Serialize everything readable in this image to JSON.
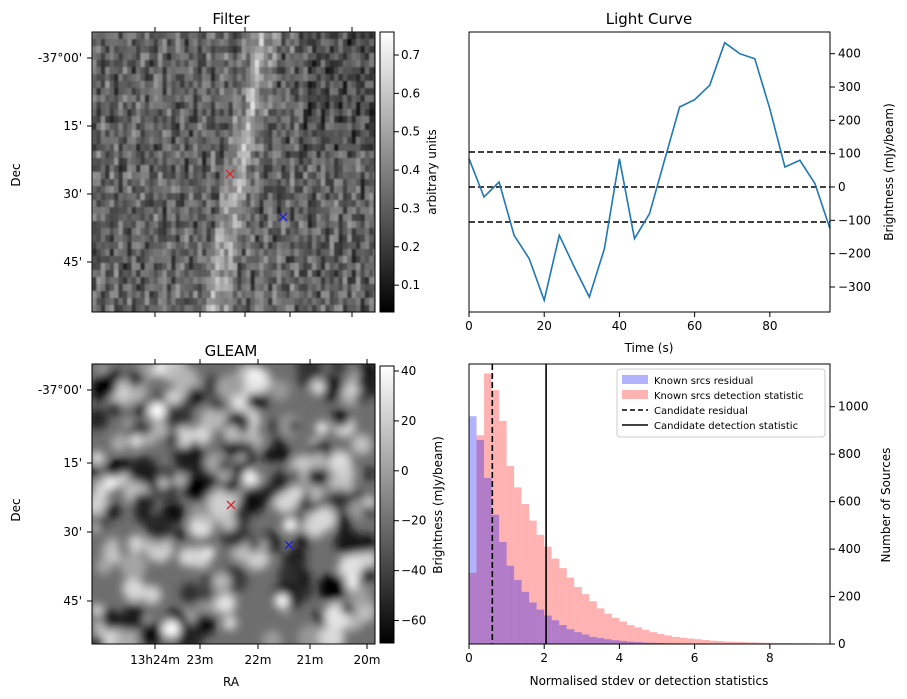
{
  "chart_data": [
    {
      "type": "heatmap",
      "title": "Filter",
      "ylabel": "Dec",
      "y_ticks": [
        "-37°00'",
        "15'",
        "30'",
        "45'"
      ],
      "colorbar": {
        "label": "arbitrary units",
        "ticks": [
          "0.1",
          "0.2",
          "0.3",
          "0.4",
          "0.5",
          "0.6",
          "0.7"
        ],
        "range": [
          0.03,
          0.76
        ]
      },
      "markers": [
        {
          "color": "#d62728",
          "symbol": "x"
        },
        {
          "color": "#1f1fd0",
          "symbol": "x"
        }
      ]
    },
    {
      "type": "line",
      "title": "Light Curve",
      "xlabel": "Time (s)",
      "ylabel": "Brightness (mJy/beam)",
      "xlim": [
        0,
        96
      ],
      "ylim": [
        -375,
        465
      ],
      "x_ticks": [
        0,
        20,
        40,
        60,
        80
      ],
      "y_ticks": [
        -300,
        -200,
        -100,
        0,
        100,
        200,
        300,
        400
      ],
      "series": [
        {
          "color": "#1f77b4",
          "x": [
            0,
            4,
            8,
            12,
            16,
            20,
            24,
            28,
            32,
            36,
            40,
            44,
            48,
            52,
            56,
            60,
            64,
            68,
            72,
            76,
            80,
            84,
            88,
            92,
            96
          ],
          "y": [
            85,
            -30,
            15,
            -145,
            -215,
            -340,
            -145,
            -240,
            -330,
            -185,
            85,
            -155,
            -80,
            80,
            240,
            262,
            305,
            433,
            400,
            385,
            235,
            60,
            80,
            10,
            -125
          ]
        }
      ],
      "hlines": [
        105,
        0,
        -105
      ]
    },
    {
      "type": "heatmap",
      "title": "GLEAM",
      "xlabel": "RA",
      "ylabel": "Dec",
      "x_ticks": [
        "13h24m",
        "23m",
        "22m",
        "21m",
        "20m"
      ],
      "y_ticks": [
        "-37°00'",
        "15'",
        "30'",
        "45'"
      ],
      "colorbar": {
        "label": "Brightness (mJy/beam)",
        "ticks": [
          "40",
          "20",
          "0",
          "−20",
          "−40",
          "−60"
        ],
        "range": [
          -69,
          42
        ]
      },
      "markers": [
        {
          "color": "#d62728",
          "symbol": "x"
        },
        {
          "color": "#1f1fd0",
          "symbol": "x"
        }
      ]
    },
    {
      "type": "bar",
      "xlabel": "Normalised stdev or detection statistics",
      "ylabel": "Number of Sources",
      "xlim": [
        0,
        9.6
      ],
      "ylim": [
        0,
        1180
      ],
      "x_ticks": [
        0,
        2,
        4,
        6,
        8
      ],
      "y_ticks": [
        0,
        200,
        400,
        600,
        800,
        1000
      ],
      "bin_width": 0.2,
      "series": [
        {
          "name": "Known srcs residual",
          "color": "#0000ff",
          "alpha": 0.3,
          "values": [
            960,
            860,
            700,
            545,
            430,
            330,
            270,
            220,
            175,
            145,
            120,
            100,
            80,
            62,
            50,
            40,
            30,
            25,
            20,
            16,
            13,
            10,
            8,
            6,
            5,
            4,
            3,
            3,
            2,
            2,
            1,
            1
          ]
        },
        {
          "name": "Known srcs detection statistic",
          "color": "#ff0000",
          "alpha": 0.3,
          "values": [
            300,
            880,
            1140,
            1070,
            940,
            750,
            660,
            590,
            520,
            460,
            410,
            360,
            320,
            280,
            240,
            210,
            180,
            150,
            128,
            110,
            95,
            80,
            70,
            60,
            50,
            42,
            36,
            30,
            26,
            23,
            20,
            17,
            14,
            12,
            10,
            9,
            8,
            7,
            6,
            5,
            5,
            4,
            4,
            3,
            3,
            3,
            2,
            2
          ]
        }
      ],
      "vlines": [
        {
          "name": "Candidate residual",
          "x": 0.62,
          "style": "dashed"
        },
        {
          "name": "Candidate detection statistic",
          "x": 2.05,
          "style": "solid"
        }
      ],
      "legend": "top-right"
    }
  ]
}
